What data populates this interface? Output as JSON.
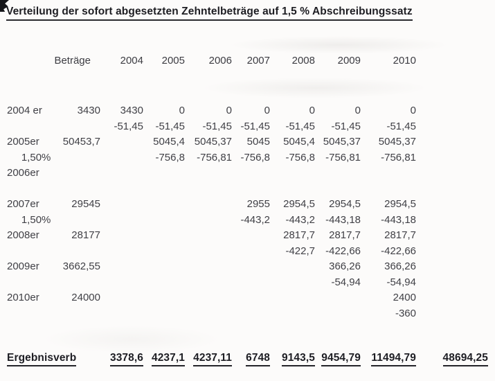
{
  "title": "Verteilung der sofort abgesetzten Zehntelbeträge auf 1,5 % Abschreibungssatz",
  "colors": {
    "paper": "#fcfbfa",
    "ink": "#404046",
    "heading_ink": "#1d1d22"
  },
  "table": {
    "header": [
      "",
      "Beträge",
      "2004",
      "2005",
      "2006",
      "2007",
      "2008",
      "2009",
      "2010",
      ""
    ],
    "rows": [
      [
        "2004 er",
        "3430",
        "3430",
        "0",
        "0",
        "0",
        "0",
        "0",
        "0",
        ""
      ],
      [
        "",
        "",
        "-51,45",
        "-51,45",
        "-51,45",
        "-51,45",
        "-51,45",
        "-51,45",
        "-51,45",
        ""
      ],
      [
        "2005er",
        "50453,7",
        "",
        "5045,4",
        "5045,37",
        "5045",
        "5045,4",
        "5045,37",
        "5045,37",
        ""
      ],
      [
        "     1,50%",
        "",
        "",
        "-756,8",
        "-756,81",
        "-756,8",
        "-756,8",
        "-756,81",
        "-756,81",
        ""
      ],
      [
        "2006er",
        "",
        "",
        "",
        "",
        "",
        "",
        "",
        "",
        ""
      ],
      [
        "",
        "",
        "",
        "",
        "",
        "",
        "",
        "",
        "",
        ""
      ],
      [
        "2007er",
        "29545",
        "",
        "",
        "",
        "2955",
        "2954,5",
        "2954,5",
        "2954,5",
        ""
      ],
      [
        "     1,50%",
        "",
        "",
        "",
        "",
        "-443,2",
        "-443,2",
        "-443,18",
        "-443,18",
        ""
      ],
      [
        "2008er",
        "28177",
        "",
        "",
        "",
        "",
        "2817,7",
        "2817,7",
        "2817,7",
        ""
      ],
      [
        "",
        "",
        "",
        "",
        "",
        "",
        "-422,7",
        "-422,66",
        "-422,66",
        ""
      ],
      [
        "2009er",
        "3662,55",
        "",
        "",
        "",
        "",
        "",
        "366,26",
        "366,26",
        ""
      ],
      [
        "",
        "",
        "",
        "",
        "",
        "",
        "",
        "-54,94",
        "-54,94",
        ""
      ],
      [
        "2010er",
        "24000",
        "",
        "",
        "",
        "",
        "",
        "",
        "2400",
        ""
      ],
      [
        "",
        "",
        "",
        "",
        "",
        "",
        "",
        "",
        "-360",
        ""
      ]
    ],
    "footer": [
      "Ergebnisverb",
      "",
      "3378,6",
      "4237,1",
      "4237,11",
      "6748",
      "9143,5",
      "9454,79",
      "11494,79",
      "48694,25"
    ]
  }
}
